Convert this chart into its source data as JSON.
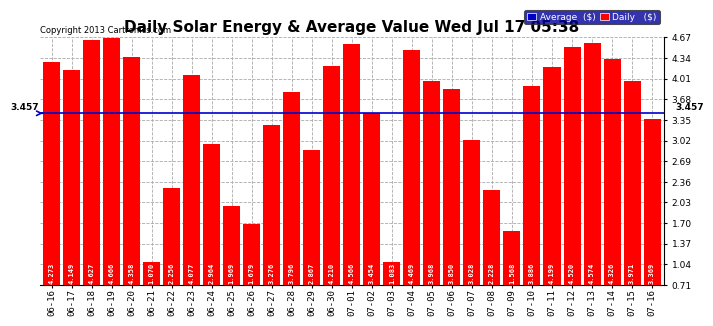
{
  "title": "Daily Solar Energy & Average Value Wed Jul 17 05:38",
  "copyright": "Copyright 2013 Cartronics.com",
  "categories": [
    "06-16",
    "06-17",
    "06-18",
    "06-19",
    "06-20",
    "06-21",
    "06-22",
    "06-23",
    "06-24",
    "06-25",
    "06-26",
    "06-27",
    "06-28",
    "06-29",
    "06-30",
    "07-01",
    "07-02",
    "07-03",
    "07-04",
    "07-05",
    "07-06",
    "07-07",
    "07-08",
    "07-09",
    "07-10",
    "07-11",
    "07-12",
    "07-13",
    "07-14",
    "07-15",
    "07-16"
  ],
  "values": [
    4.273,
    4.149,
    4.627,
    4.666,
    4.358,
    1.07,
    2.256,
    4.077,
    2.964,
    1.969,
    1.679,
    3.276,
    3.796,
    2.867,
    4.21,
    4.566,
    3.454,
    1.083,
    4.469,
    3.968,
    3.85,
    3.028,
    2.228,
    1.568,
    3.886,
    4.199,
    4.52,
    4.574,
    4.326,
    3.971,
    3.369
  ],
  "average_value": 3.457,
  "bar_color": "#ff0000",
  "average_line_color": "#0000cc",
  "background_color": "#ffffff",
  "plot_bg_color": "#ffffff",
  "grid_color": "#aaaaaa",
  "ymin": 0.71,
  "ymax": 4.67,
  "yticks": [
    0.71,
    1.04,
    1.37,
    1.7,
    2.03,
    2.36,
    2.69,
    3.02,
    3.35,
    3.68,
    4.01,
    4.34,
    4.67
  ],
  "title_fontsize": 11,
  "copyright_fontsize": 6,
  "bar_label_fontsize": 5,
  "tick_fontsize": 6.5,
  "legend_bg_color": "#000099",
  "legend_text_color": "#ffffff",
  "avg_label": "Average  ($)",
  "daily_label": "Daily   ($)",
  "avg_arrow_label": "3.457",
  "avg_right_label": "3.457"
}
